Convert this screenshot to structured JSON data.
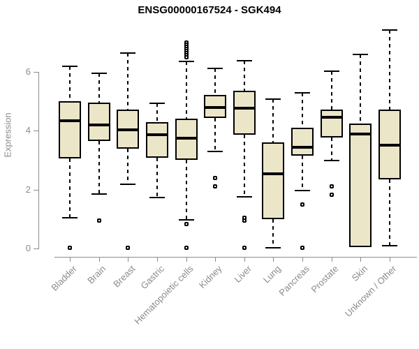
{
  "chart_data": {
    "type": "boxplot",
    "title": "ENSG00000167524 - SGK494",
    "ylabel": "Expression",
    "xlabel": "",
    "ylim": [
      0,
      7.5
    ],
    "yticks": [
      0,
      2,
      4,
      6
    ],
    "grid": false,
    "legend": "none",
    "colors": {
      "box_fill": "#EBE6C8",
      "box_border": "#000000",
      "median": "#000000",
      "axis": "#8b8b8b",
      "title": "#000000"
    },
    "categories": [
      "Bladder",
      "Brain",
      "Breast",
      "Gastric",
      "Hematopoietic cells",
      "Kidney",
      "Liver",
      "Lung",
      "Pancreas",
      "Prostate",
      "Skin",
      "Unknown / Other"
    ],
    "boxes": [
      {
        "category": "Bladder",
        "whisker_low": 1.05,
        "q1": 3.05,
        "median": 4.35,
        "q3": 5.0,
        "whisker_high": 6.2,
        "outliers": [
          0.02
        ]
      },
      {
        "category": "Brain",
        "whisker_low": 1.85,
        "q1": 3.65,
        "median": 4.2,
        "q3": 4.95,
        "whisker_high": 5.95,
        "outliers": [
          0.95
        ]
      },
      {
        "category": "Breast",
        "whisker_low": 2.18,
        "q1": 3.4,
        "median": 4.03,
        "q3": 4.72,
        "whisker_high": 6.65,
        "outliers": [
          0.02
        ]
      },
      {
        "category": "Gastric",
        "whisker_low": 1.73,
        "q1": 3.08,
        "median": 3.86,
        "q3": 4.3,
        "whisker_high": 4.93,
        "outliers": []
      },
      {
        "category": "Hematopoietic cells",
        "whisker_low": 0.97,
        "q1": 3.0,
        "median": 3.75,
        "q3": 4.4,
        "whisker_high": 6.35,
        "outliers": [
          7.0,
          6.93,
          6.86,
          6.79,
          6.72,
          6.65,
          6.58,
          6.5,
          0.83,
          0.02
        ]
      },
      {
        "category": "Kidney",
        "whisker_low": 3.3,
        "q1": 4.43,
        "median": 4.79,
        "q3": 5.22,
        "whisker_high": 6.12,
        "outliers": [
          2.4,
          2.11
        ]
      },
      {
        "category": "Liver",
        "whisker_low": 1.76,
        "q1": 3.87,
        "median": 4.77,
        "q3": 5.36,
        "whisker_high": 6.38,
        "outliers": [
          1.04,
          0.95,
          0.02
        ]
      },
      {
        "category": "Lung",
        "whisker_low": 0.02,
        "q1": 1.0,
        "median": 2.54,
        "q3": 3.6,
        "whisker_high": 5.07,
        "outliers": []
      },
      {
        "category": "Pancreas",
        "whisker_low": 1.97,
        "q1": 3.15,
        "median": 3.44,
        "q3": 4.1,
        "whisker_high": 5.29,
        "outliers": [
          1.49,
          0.02
        ]
      },
      {
        "category": "Prostate",
        "whisker_low": 2.99,
        "q1": 3.77,
        "median": 4.46,
        "q3": 4.72,
        "whisker_high": 6.02,
        "outliers": [
          2.11,
          1.83
        ]
      },
      {
        "category": "Skin",
        "whisker_low": 0.05,
        "q1": 0.05,
        "median": 3.89,
        "q3": 4.24,
        "whisker_high": 6.59,
        "outliers": []
      },
      {
        "category": "Unknown / Other",
        "whisker_low": 0.1,
        "q1": 2.35,
        "median": 3.51,
        "q3": 4.72,
        "whisker_high": 7.42,
        "outliers": []
      }
    ]
  }
}
